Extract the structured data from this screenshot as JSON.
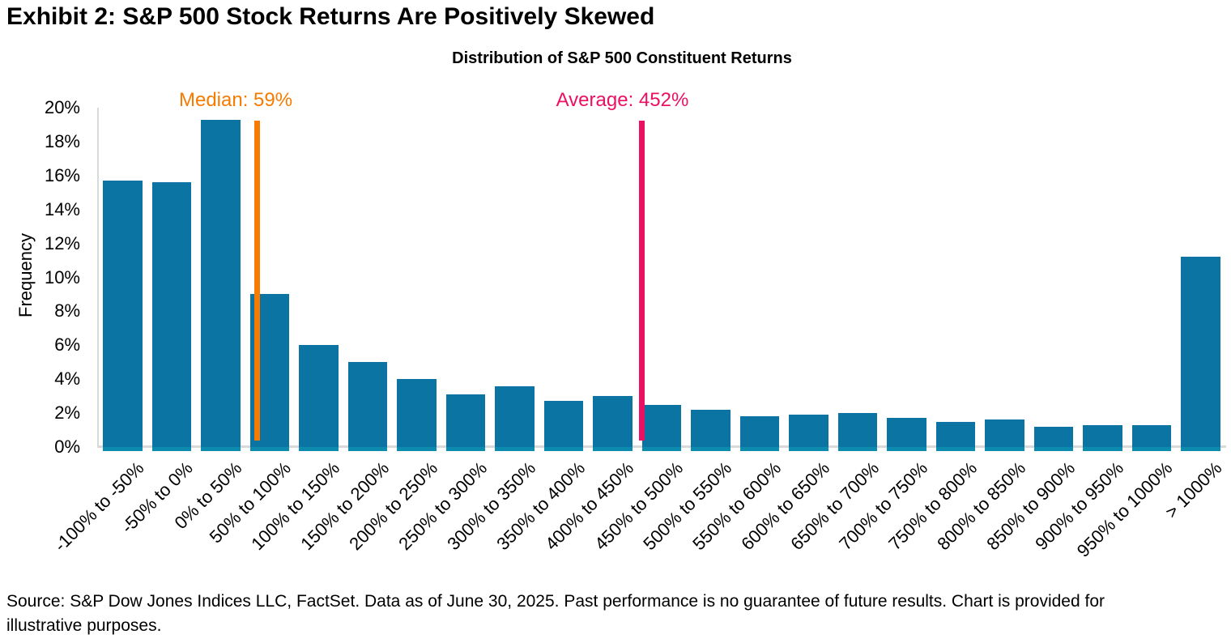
{
  "exhibit_title": "Exhibit 2: S&P 500 Stock Returns Are Positively Skewed",
  "chart_data": {
    "type": "bar",
    "title": "Distribution of S&P 500 Constituent Returns",
    "xlabel": "",
    "ylabel": "Frequency",
    "ylim": [
      0,
      20
    ],
    "ytick_step": 2,
    "ytick_suffix": "%",
    "grid": false,
    "legend": "none",
    "categories": [
      "-100% to -50%",
      "-50% to 0%",
      "0% to 50%",
      "50% to 100%",
      "100% to 150%",
      "150% to 200%",
      "200% to 250%",
      "250% to 300%",
      "300% to 350%",
      "350% to 400%",
      "400% to 450%",
      "450% to 500%",
      "500% to 550%",
      "550% to 600%",
      "600% to 650%",
      "650% to 700%",
      "700% to 750%",
      "750% to 800%",
      "800% to 850%",
      "850% to 900%",
      "900% to 950%",
      "950% to 1000%",
      "> 1000%"
    ],
    "values": [
      15.7,
      15.6,
      19.3,
      9.0,
      6.0,
      5.0,
      4.0,
      3.1,
      3.6,
      2.7,
      3.0,
      2.5,
      2.2,
      1.8,
      1.9,
      2.0,
      1.7,
      1.5,
      1.6,
      1.2,
      1.3,
      1.3,
      11.2
    ],
    "bar_color": "#0b74a2",
    "bar_base_color": "#0c8bae",
    "axis_color": "#d9d9d9",
    "annotations": {
      "median": {
        "label": "Median: 59%",
        "value": 59,
        "color": "#f67b00",
        "line_x_frac": 0.1412,
        "label_center_frac": 0.1222
      },
      "average": {
        "label": "Average: 452%",
        "value": 452,
        "color": "#ec1062",
        "line_x_frac": 0.4829,
        "label_center_frac": 0.4653
      }
    }
  },
  "footer": {
    "source_text": "Source: S&P Dow Jones Indices LLC, FactSet. Data as of June 30, 2025. Past performance is no guarantee of future results. Chart is provided for illustrative purposes."
  }
}
